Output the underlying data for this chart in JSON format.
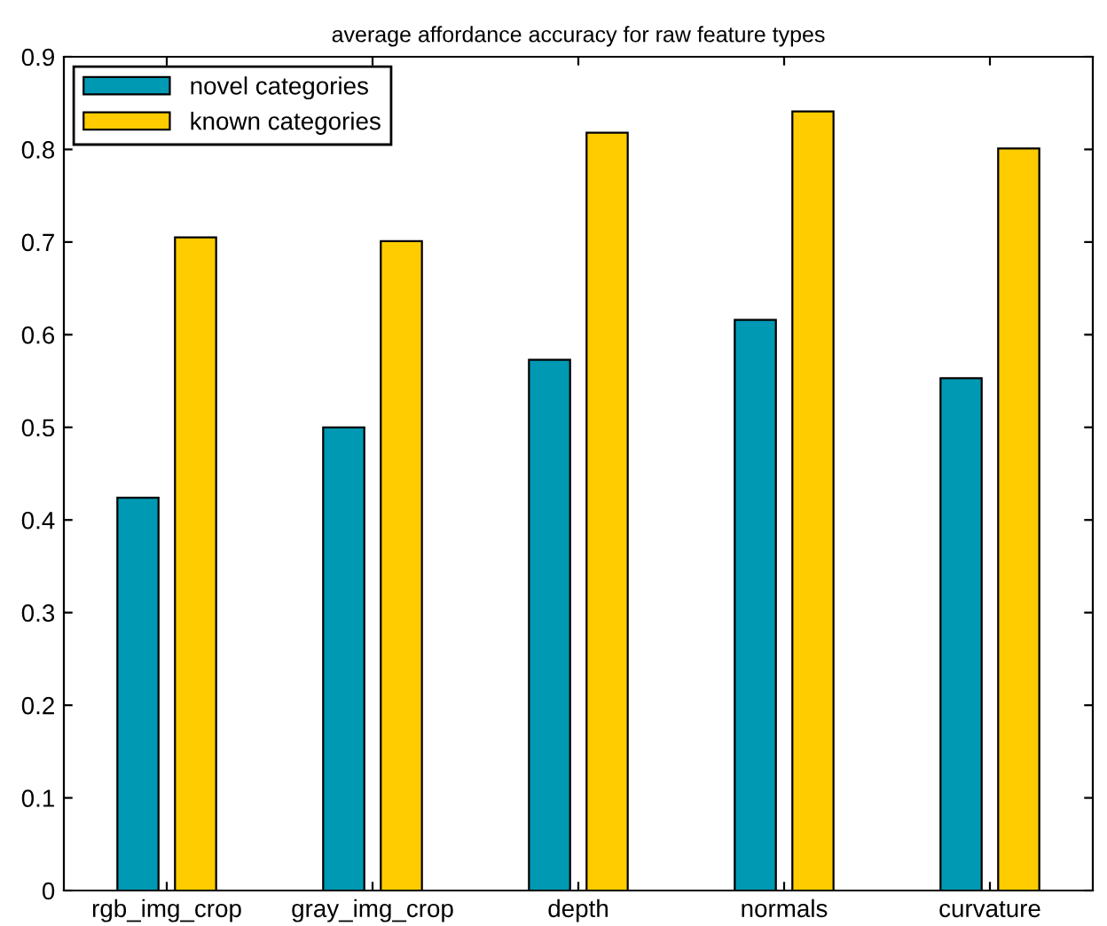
{
  "chart_data": {
    "type": "bar",
    "title": "average affordance accuracy for raw feature types",
    "categories": [
      "rgb_img_crop",
      "gray_img_crop",
      "depth",
      "normals",
      "curvature"
    ],
    "series": [
      {
        "name": "novel categories",
        "color": "#0099b3",
        "values": [
          0.424,
          0.5,
          0.573,
          0.616,
          0.553
        ]
      },
      {
        "name": "known categories",
        "color": "#ffcc00",
        "values": [
          0.705,
          0.701,
          0.818,
          0.841,
          0.801
        ]
      }
    ],
    "ylim": [
      0,
      0.9
    ],
    "yticks": [
      0,
      0.1,
      0.2,
      0.3,
      0.4,
      0.5,
      0.6,
      0.7,
      0.8,
      0.9
    ],
    "grid": false,
    "legend": "top left"
  }
}
